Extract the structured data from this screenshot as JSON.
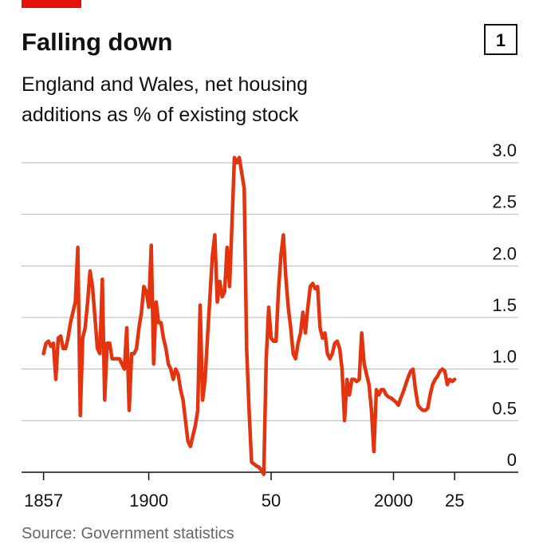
{
  "chart_data": {
    "type": "line",
    "title": "Falling down",
    "chart_number": "1",
    "subtitle": [
      "England and Wales, net housing",
      "additions as % of existing stock"
    ],
    "source": "Source: Government statistics",
    "color": "#e3330f",
    "grid": true,
    "x": [
      1857,
      1858,
      1859,
      1860,
      1861,
      1862,
      1863,
      1864,
      1865,
      1866,
      1867,
      1868,
      1869,
      1870,
      1871,
      1872,
      1873,
      1874,
      1875,
      1876,
      1877,
      1878,
      1879,
      1880,
      1881,
      1882,
      1883,
      1884,
      1885,
      1886,
      1887,
      1888,
      1889,
      1890,
      1891,
      1892,
      1893,
      1894,
      1895,
      1896,
      1897,
      1898,
      1899,
      1900,
      1901,
      1902,
      1903,
      1904,
      1905,
      1906,
      1907,
      1908,
      1909,
      1910,
      1911,
      1912,
      1913,
      1914,
      1915,
      1916,
      1917,
      1918,
      1919,
      1920,
      1921,
      1922,
      1923,
      1924,
      1925,
      1926,
      1927,
      1928,
      1929,
      1930,
      1931,
      1932,
      1933,
      1934,
      1935,
      1936,
      1937,
      1938,
      1939,
      1940,
      1941,
      1942,
      1943,
      1944,
      1945,
      1946,
      1947,
      1948,
      1949,
      1950,
      1951,
      1952,
      1953,
      1954,
      1955,
      1956,
      1957,
      1958,
      1959,
      1960,
      1961,
      1962,
      1963,
      1964,
      1965,
      1966,
      1967,
      1968,
      1969,
      1970,
      1971,
      1972,
      1973,
      1974,
      1975,
      1976,
      1977,
      1978,
      1979,
      1980,
      1981,
      1982,
      1983,
      1984,
      1985,
      1986,
      1987,
      1988,
      1989,
      1990,
      1991,
      1992,
      1993,
      1994,
      1995,
      1996,
      1997,
      1998,
      1999,
      2000,
      2001,
      2002,
      2003,
      2004,
      2005,
      2006,
      2007,
      2008,
      2009,
      2010,
      2011,
      2012,
      2013,
      2014,
      2015,
      2016,
      2017,
      2018,
      2019,
      2020,
      2021,
      2022,
      2023,
      2024,
      2025
    ],
    "values": [
      1.15,
      1.25,
      1.27,
      1.22,
      1.25,
      0.9,
      1.3,
      1.32,
      1.2,
      1.2,
      1.3,
      1.45,
      1.55,
      1.65,
      2.18,
      0.55,
      1.3,
      1.4,
      1.65,
      1.95,
      1.8,
      1.5,
      1.2,
      1.15,
      1.87,
      0.7,
      1.25,
      1.25,
      1.1,
      1.1,
      1.1,
      1.1,
      1.05,
      1.0,
      1.4,
      0.6,
      1.15,
      1.15,
      1.2,
      1.4,
      1.55,
      1.8,
      1.75,
      1.6,
      2.2,
      1.05,
      1.65,
      1.45,
      1.45,
      1.3,
      1.2,
      1.05,
      1.0,
      0.9,
      1.0,
      0.95,
      0.8,
      0.7,
      0.5,
      0.3,
      0.25,
      0.35,
      0.45,
      0.6,
      1.62,
      0.7,
      0.9,
      1.3,
      1.7,
      2.1,
      2.3,
      1.65,
      1.85,
      1.7,
      1.75,
      2.18,
      1.8,
      2.4,
      3.05,
      3.0,
      3.05,
      2.9,
      2.75,
      1.2,
      0.6,
      0.1,
      0.08,
      0.06,
      0.05,
      0.02,
      -0.02,
      1.1,
      1.6,
      1.3,
      1.27,
      1.27,
      1.75,
      2.1,
      2.3,
      1.9,
      1.6,
      1.4,
      1.15,
      1.1,
      1.25,
      1.35,
      1.55,
      1.35,
      1.6,
      1.8,
      1.83,
      1.78,
      1.8,
      1.4,
      1.3,
      1.35,
      1.15,
      1.1,
      1.15,
      1.25,
      1.27,
      1.2,
      1.0,
      0.5,
      0.9,
      0.75,
      0.9,
      0.9,
      0.88,
      0.9,
      1.35,
      1.05,
      0.95,
      0.85,
      0.6,
      0.2,
      0.8,
      0.75,
      0.8,
      0.8,
      0.75,
      0.73,
      0.72,
      0.7,
      0.68,
      0.65,
      0.72,
      0.78,
      0.85,
      0.92,
      0.98,
      1.0,
      0.8,
      0.65,
      0.62,
      0.6,
      0.6,
      0.62,
      0.75,
      0.85,
      0.9,
      0.93,
      0.98,
      1.0,
      0.98,
      0.85,
      0.9,
      0.88,
      0.9
    ],
    "xlim": [
      1848,
      2051
    ],
    "ylim": [
      0,
      3
    ],
    "xticks": [
      1857,
      1900,
      {
        "value": 1950,
        "label": "50"
      },
      2000,
      {
        "value": 2025,
        "label": "25"
      }
    ],
    "yticks": [
      0,
      0.5,
      {
        "value": 1,
        "label": "1.0"
      },
      1.5,
      {
        "value": 2,
        "label": "2.0"
      },
      2.5,
      {
        "value": 3,
        "label": "3.0"
      }
    ]
  }
}
